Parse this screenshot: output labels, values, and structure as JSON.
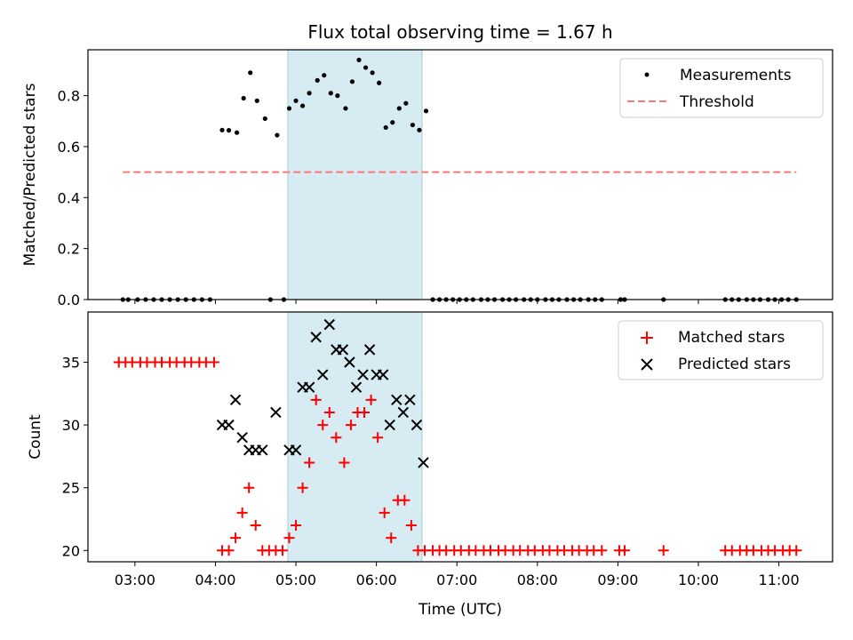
{
  "title": "Flux total observing time = 1.67 h",
  "colors": {
    "shade": "#add8e6",
    "threshold": "#ff7777",
    "measurement": "#000000",
    "matched": "#ff0000",
    "predicted": "#000000"
  },
  "chart_data": [
    {
      "type": "scatter",
      "ylabel": "Matched/Predicted stars",
      "xlim": [
        "02:25",
        "11:40"
      ],
      "ylim": [
        0,
        0.98
      ],
      "yticks": [
        "0.0",
        "0.2",
        "0.4",
        "0.6",
        "0.8"
      ],
      "shaded_region": {
        "x_start": "04:54",
        "x_end": "06:34"
      },
      "legend": {
        "position": "top-right",
        "entries": [
          "Measurements",
          "Threshold"
        ]
      },
      "threshold": {
        "name": "Threshold",
        "y": 0.5,
        "x_start": "02:51",
        "x_end": "11:13"
      },
      "series": [
        {
          "name": "Measurements",
          "points": [
            [
              "02:51",
              0
            ],
            [
              "02:55",
              0
            ],
            [
              "03:02",
              0
            ],
            [
              "03:08",
              0
            ],
            [
              "03:14",
              0
            ],
            [
              "03:20",
              0
            ],
            [
              "03:26",
              0
            ],
            [
              "03:32",
              0
            ],
            [
              "03:38",
              0
            ],
            [
              "03:44",
              0
            ],
            [
              "03:50",
              0
            ],
            [
              "03:56",
              0
            ],
            [
              "04:05",
              0.665
            ],
            [
              "04:10",
              0.664
            ],
            [
              "04:16",
              0.655
            ],
            [
              "04:21",
              0.79
            ],
            [
              "04:26",
              0.89
            ],
            [
              "04:31",
              0.78
            ],
            [
              "04:37",
              0.71
            ],
            [
              "04:41",
              0
            ],
            [
              "04:46",
              0.645
            ],
            [
              "04:51",
              0
            ],
            [
              "04:55",
              0.75
            ],
            [
              "05:00",
              0.78
            ],
            [
              "05:05",
              0.76
            ],
            [
              "05:10",
              0.81
            ],
            [
              "05:16",
              0.86
            ],
            [
              "05:21",
              0.88
            ],
            [
              "05:26",
              0.81
            ],
            [
              "05:31",
              0.8
            ],
            [
              "05:37",
              0.75
            ],
            [
              "05:42",
              0.855
            ],
            [
              "05:47",
              0.94
            ],
            [
              "05:52",
              0.91
            ],
            [
              "05:57",
              0.89
            ],
            [
              "06:02",
              0.85
            ],
            [
              "06:07",
              0.675
            ],
            [
              "06:12",
              0.695
            ],
            [
              "06:17",
              0.75
            ],
            [
              "06:22",
              0.77
            ],
            [
              "06:27",
              0.685
            ],
            [
              "06:32",
              0.665
            ],
            [
              "06:37",
              0.74
            ],
            [
              "06:42",
              0
            ],
            [
              "06:47",
              0
            ],
            [
              "06:52",
              0
            ],
            [
              "06:57",
              0
            ],
            [
              "07:02",
              0
            ],
            [
              "07:07",
              0
            ],
            [
              "07:12",
              0
            ],
            [
              "07:18",
              0
            ],
            [
              "07:23",
              0
            ],
            [
              "07:28",
              0
            ],
            [
              "07:34",
              0
            ],
            [
              "07:39",
              0
            ],
            [
              "07:44",
              0
            ],
            [
              "07:50",
              0
            ],
            [
              "07:55",
              0
            ],
            [
              "08:00",
              0
            ],
            [
              "08:06",
              0
            ],
            [
              "08:11",
              0
            ],
            [
              "08:16",
              0
            ],
            [
              "08:22",
              0
            ],
            [
              "08:27",
              0
            ],
            [
              "08:32",
              0
            ],
            [
              "08:38",
              0
            ],
            [
              "08:43",
              0
            ],
            [
              "08:48",
              0
            ],
            [
              "09:02",
              0
            ],
            [
              "09:05",
              0
            ],
            [
              "09:34",
              0
            ],
            [
              "10:20",
              0
            ],
            [
              "10:25",
              0
            ],
            [
              "10:30",
              0
            ],
            [
              "10:36",
              0
            ],
            [
              "10:41",
              0
            ],
            [
              "10:46",
              0
            ],
            [
              "10:52",
              0
            ],
            [
              "10:57",
              0
            ],
            [
              "11:02",
              0
            ],
            [
              "11:07",
              0
            ],
            [
              "11:13",
              0
            ]
          ]
        }
      ]
    },
    {
      "type": "scatter",
      "xlabel": "Time (UTC)",
      "ylabel": "Count",
      "xlim": [
        "02:25",
        "11:40"
      ],
      "ylim": [
        19.1,
        39.0
      ],
      "yticks": [
        "20",
        "25",
        "30",
        "35"
      ],
      "xticks": [
        "03:00",
        "04:00",
        "05:00",
        "06:00",
        "07:00",
        "08:00",
        "09:00",
        "10:00",
        "11:00"
      ],
      "shaded_region": {
        "x_start": "04:54",
        "x_end": "06:34"
      },
      "legend": {
        "position": "top-right",
        "entries": [
          "Matched stars",
          "Predicted stars"
        ]
      },
      "series": [
        {
          "name": "Matched stars",
          "points": [
            [
              "02:48",
              35
            ],
            [
              "02:53",
              35
            ],
            [
              "02:58",
              35
            ],
            [
              "03:04",
              35
            ],
            [
              "03:09",
              35
            ],
            [
              "03:15",
              35
            ],
            [
              "03:20",
              35
            ],
            [
              "03:26",
              35
            ],
            [
              "03:31",
              35
            ],
            [
              "03:37",
              35
            ],
            [
              "03:42",
              35
            ],
            [
              "03:48",
              35
            ],
            [
              "03:53",
              35
            ],
            [
              "03:59",
              35
            ],
            [
              "04:05",
              20
            ],
            [
              "04:10",
              20
            ],
            [
              "04:15",
              21
            ],
            [
              "04:20",
              23
            ],
            [
              "04:25",
              25
            ],
            [
              "04:30",
              22
            ],
            [
              "04:35",
              20
            ],
            [
              "04:40",
              20
            ],
            [
              "04:45",
              20
            ],
            [
              "04:50",
              20
            ],
            [
              "04:55",
              21
            ],
            [
              "05:00",
              22
            ],
            [
              "05:05",
              25
            ],
            [
              "05:10",
              27
            ],
            [
              "05:15",
              32
            ],
            [
              "05:20",
              30
            ],
            [
              "05:25",
              31
            ],
            [
              "05:30",
              29
            ],
            [
              "05:36",
              27
            ],
            [
              "05:41",
              30
            ],
            [
              "05:46",
              31
            ],
            [
              "05:51",
              31
            ],
            [
              "05:56",
              32
            ],
            [
              "06:01",
              29
            ],
            [
              "06:06",
              23
            ],
            [
              "06:11",
              21
            ],
            [
              "06:16",
              24
            ],
            [
              "06:21",
              24
            ],
            [
              "06:26",
              22
            ],
            [
              "06:31",
              20
            ],
            [
              "06:36",
              20
            ],
            [
              "06:42",
              20
            ],
            [
              "06:47",
              20
            ],
            [
              "06:52",
              20
            ],
            [
              "06:58",
              20
            ],
            [
              "07:03",
              20
            ],
            [
              "07:09",
              20
            ],
            [
              "07:14",
              20
            ],
            [
              "07:20",
              20
            ],
            [
              "07:25",
              20
            ],
            [
              "07:31",
              20
            ],
            [
              "07:36",
              20
            ],
            [
              "07:42",
              20
            ],
            [
              "07:47",
              20
            ],
            [
              "07:53",
              20
            ],
            [
              "07:58",
              20
            ],
            [
              "08:04",
              20
            ],
            [
              "08:09",
              20
            ],
            [
              "08:15",
              20
            ],
            [
              "08:20",
              20
            ],
            [
              "08:26",
              20
            ],
            [
              "08:31",
              20
            ],
            [
              "08:37",
              20
            ],
            [
              "08:42",
              20
            ],
            [
              "08:48",
              20
            ],
            [
              "09:01",
              20
            ],
            [
              "09:05",
              20
            ],
            [
              "09:34",
              20
            ],
            [
              "10:20",
              20
            ],
            [
              "10:25",
              20
            ],
            [
              "10:31",
              20
            ],
            [
              "10:36",
              20
            ],
            [
              "10:41",
              20
            ],
            [
              "10:47",
              20
            ],
            [
              "10:52",
              20
            ],
            [
              "10:57",
              20
            ],
            [
              "11:03",
              20
            ],
            [
              "11:08",
              20
            ],
            [
              "11:13",
              20
            ]
          ]
        },
        {
          "name": "Predicted stars",
          "points": [
            [
              "04:05",
              30
            ],
            [
              "04:10",
              30
            ],
            [
              "04:15",
              32
            ],
            [
              "04:20",
              29
            ],
            [
              "04:25",
              28
            ],
            [
              "04:30",
              28
            ],
            [
              "04:35",
              28
            ],
            [
              "04:45",
              31
            ],
            [
              "04:55",
              28
            ],
            [
              "05:00",
              28
            ],
            [
              "05:05",
              33
            ],
            [
              "05:10",
              33
            ],
            [
              "05:15",
              37
            ],
            [
              "05:20",
              34
            ],
            [
              "05:25",
              38
            ],
            [
              "05:30",
              36
            ],
            [
              "05:35",
              36
            ],
            [
              "05:40",
              35
            ],
            [
              "05:45",
              33
            ],
            [
              "05:50",
              34
            ],
            [
              "05:55",
              36
            ],
            [
              "06:00",
              34
            ],
            [
              "06:05",
              34
            ],
            [
              "06:10",
              30
            ],
            [
              "06:15",
              32
            ],
            [
              "06:20",
              31
            ],
            [
              "06:25",
              32
            ],
            [
              "06:30",
              30
            ],
            [
              "06:35",
              27
            ]
          ]
        }
      ]
    }
  ]
}
